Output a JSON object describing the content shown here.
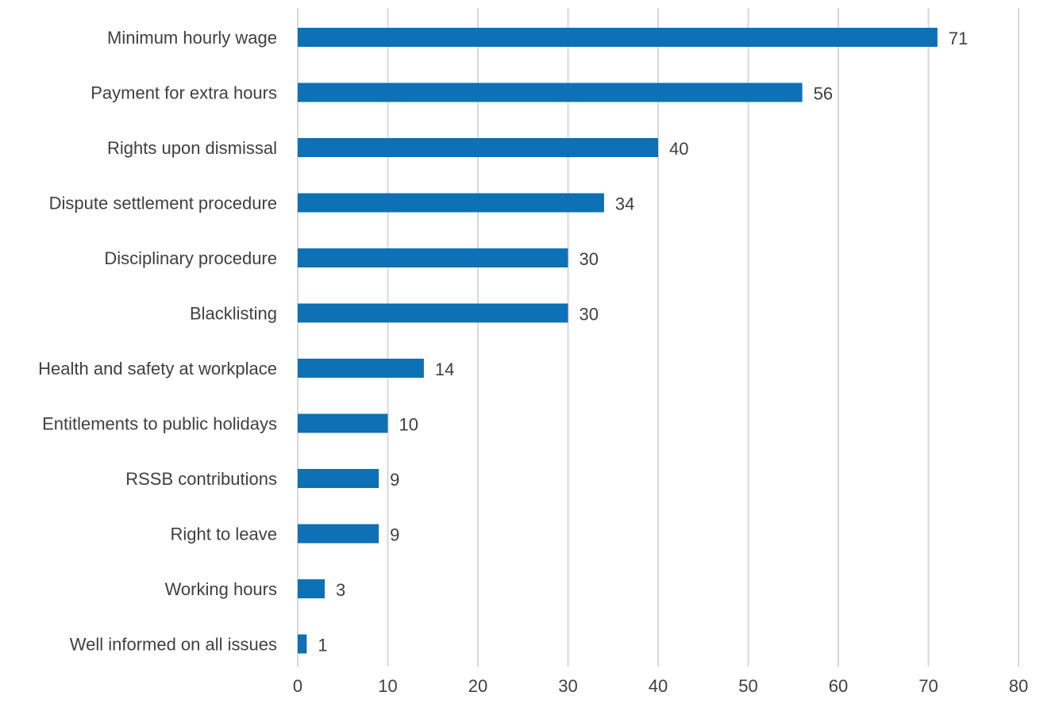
{
  "chart_data": {
    "type": "bar",
    "orientation": "horizontal",
    "title": "",
    "xlabel": "",
    "ylabel": "",
    "categories": [
      "Minimum hourly wage",
      "Payment for extra hours",
      "Rights upon dismissal",
      "Dispute settlement procedure",
      "Disciplinary procedure",
      "Blacklisting",
      "Health and safety at workplace",
      "Entitlements to public holidays",
      "RSSB contributions",
      "Right to leave",
      "Working hours",
      "Well informed on all issues"
    ],
    "values": [
      71,
      56,
      40,
      34,
      30,
      30,
      14,
      10,
      9,
      9,
      3,
      1
    ],
    "data_labels": [
      "71",
      "56",
      "40",
      "34",
      "30",
      "30",
      "14",
      "10",
      "9",
      "9",
      "3",
      "1"
    ],
    "xlim": [
      0,
      80
    ],
    "x_ticks": [
      0,
      10,
      20,
      30,
      40,
      50,
      60,
      70,
      80
    ],
    "x_tick_labels": [
      "0",
      "10",
      "20",
      "30",
      "40",
      "50",
      "60",
      "70",
      "80"
    ],
    "grid": "vertical",
    "legend": "none",
    "bar_color": "#0e70b5"
  }
}
